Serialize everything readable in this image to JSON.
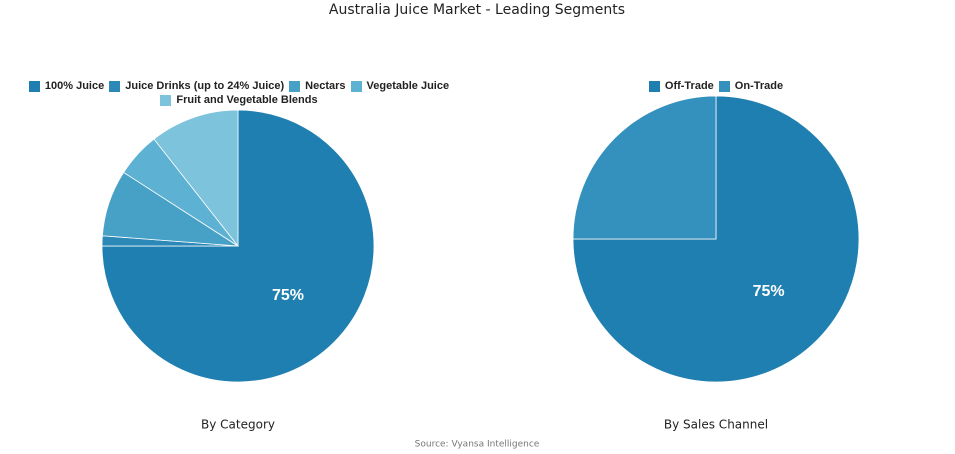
{
  "title": "Australia Juice Market - Leading Segments",
  "source": "Source: Vyansa Intelligence",
  "chart_data": [
    {
      "type": "pie",
      "title": "By Category",
      "categories": [
        "100% Juice",
        "Juice Drinks (up to 24% Juice)",
        "Nectars",
        "Vegetable Juice",
        "Fruit and Vegetable Blends"
      ],
      "values": [
        75,
        1.2,
        7.9,
        5.3,
        10.6
      ],
      "value_labels": [
        "75%",
        null,
        null,
        null,
        null
      ],
      "colors": [
        "#1f7fb0",
        "#2b88b7",
        "#47a1c7",
        "#5db1d2",
        "#7dc3dc"
      ]
    },
    {
      "type": "pie",
      "title": "By Sales Channel",
      "categories": [
        "Off-Trade",
        "On-Trade"
      ],
      "values": [
        75,
        25
      ],
      "value_labels": [
        "75%",
        null
      ],
      "colors": [
        "#1f7fb0",
        "#3490bd"
      ]
    }
  ]
}
